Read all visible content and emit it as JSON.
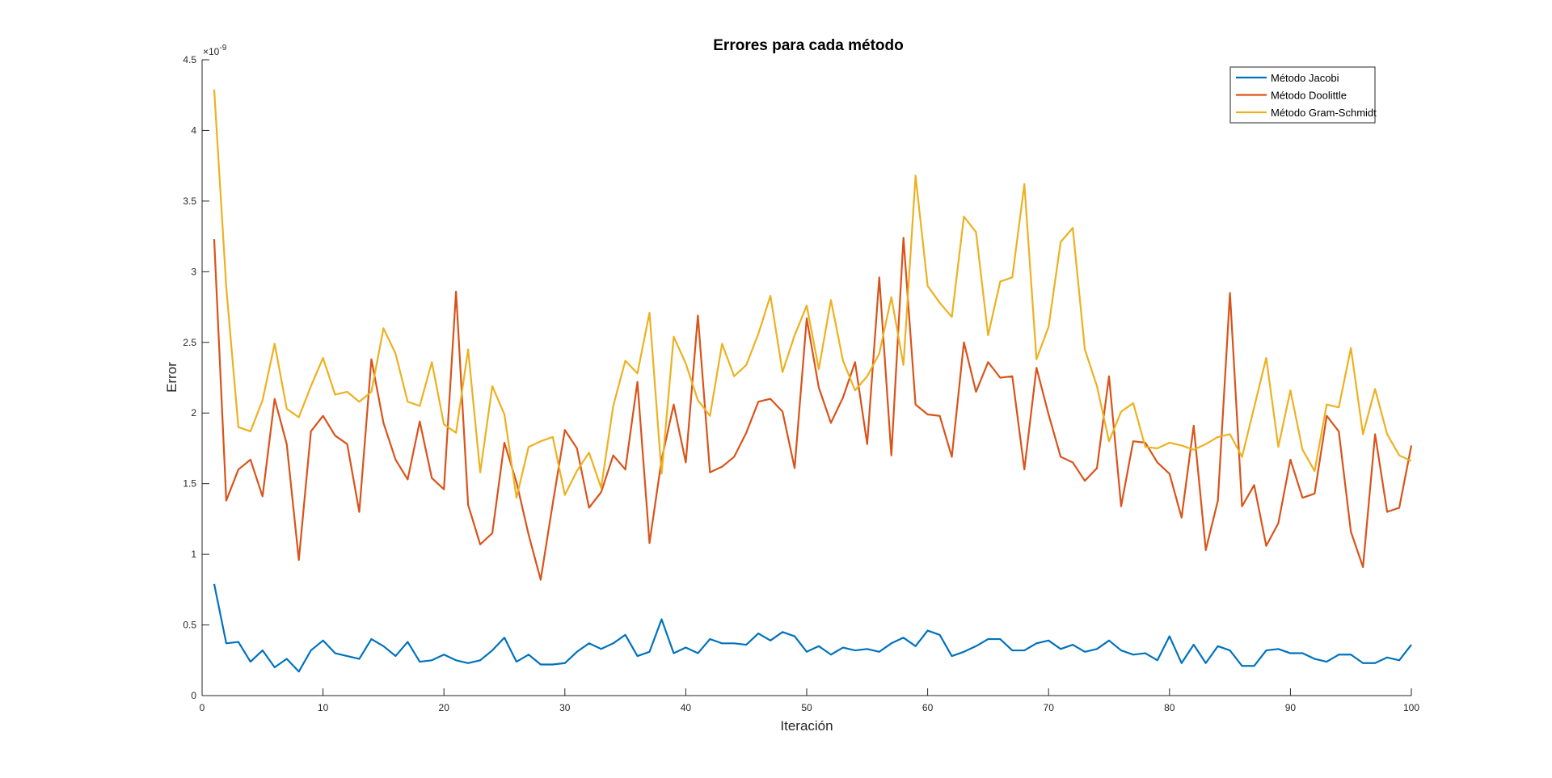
{
  "chart_data": {
    "type": "line",
    "title": "Errores para cada método",
    "xlabel": "Iteración",
    "ylabel": "Error",
    "y_exponent_label": "×10",
    "y_exponent_power": "-9",
    "xlim": [
      0,
      100
    ],
    "ylim": [
      0,
      4.5
    ],
    "xticks": [
      0,
      10,
      20,
      30,
      40,
      50,
      60,
      70,
      80,
      90,
      100
    ],
    "yticks": [
      0,
      0.5,
      1,
      1.5,
      2,
      2.5,
      3,
      3.5,
      4,
      4.5
    ],
    "ytick_labels": [
      "0",
      "0.5",
      "1",
      "1.5",
      "2",
      "2.5",
      "3",
      "3.5",
      "4",
      "4.5"
    ],
    "grid": false,
    "legend_position": "top-right",
    "series": [
      {
        "name": "Método Jacobi",
        "color": "#0072BD",
        "values": [
          0.79,
          0.37,
          0.38,
          0.24,
          0.32,
          0.2,
          0.26,
          0.17,
          0.32,
          0.39,
          0.3,
          0.28,
          0.26,
          0.4,
          0.35,
          0.28,
          0.38,
          0.24,
          0.25,
          0.29,
          0.25,
          0.23,
          0.25,
          0.32,
          0.41,
          0.24,
          0.29,
          0.22,
          0.22,
          0.23,
          0.31,
          0.37,
          0.33,
          0.37,
          0.43,
          0.28,
          0.31,
          0.54,
          0.3,
          0.34,
          0.3,
          0.4,
          0.37,
          0.37,
          0.36,
          0.44,
          0.39,
          0.45,
          0.42,
          0.31,
          0.35,
          0.29,
          0.34,
          0.32,
          0.33,
          0.31,
          0.37,
          0.41,
          0.35,
          0.46,
          0.43,
          0.28,
          0.31,
          0.35,
          0.4,
          0.4,
          0.32,
          0.32,
          0.37,
          0.39,
          0.33,
          0.36,
          0.31,
          0.33,
          0.39,
          0.32,
          0.29,
          0.3,
          0.25,
          0.42,
          0.23,
          0.36,
          0.23,
          0.35,
          0.32,
          0.21,
          0.21,
          0.32,
          0.33,
          0.3,
          0.3,
          0.26,
          0.24,
          0.29,
          0.29,
          0.23,
          0.23,
          0.27,
          0.25,
          0.36
        ]
      },
      {
        "name": "Método Doolittle",
        "color": "#D95319",
        "values": [
          3.23,
          1.38,
          1.6,
          1.67,
          1.41,
          2.1,
          1.78,
          0.96,
          1.87,
          1.98,
          1.84,
          1.78,
          1.3,
          2.38,
          1.93,
          1.67,
          1.53,
          1.94,
          1.54,
          1.46,
          2.86,
          1.35,
          1.07,
          1.15,
          1.79,
          1.51,
          1.14,
          0.82,
          1.36,
          1.88,
          1.75,
          1.33,
          1.44,
          1.7,
          1.6,
          2.22,
          1.08,
          1.67,
          2.06,
          1.65,
          2.69,
          1.58,
          1.62,
          1.69,
          1.86,
          2.08,
          2.1,
          2.01,
          1.61,
          2.67,
          2.18,
          1.93,
          2.11,
          2.36,
          1.78,
          2.96,
          1.7,
          3.24,
          2.06,
          1.99,
          1.98,
          1.69,
          2.5,
          2.15,
          2.36,
          2.25,
          2.26,
          1.6,
          2.32,
          1.99,
          1.69,
          1.65,
          1.52,
          1.61,
          2.26,
          1.34,
          1.8,
          1.79,
          1.65,
          1.57,
          1.26,
          1.91,
          1.03,
          1.38,
          2.85,
          1.34,
          1.49,
          1.06,
          1.22,
          1.67,
          1.4,
          1.43,
          1.98,
          1.87,
          1.16,
          0.91,
          1.85,
          1.3,
          1.33,
          1.77
        ]
      },
      {
        "name": "Método Gram-Schmidt",
        "color": "#EDB120",
        "values": [
          4.29,
          2.89,
          1.9,
          1.87,
          2.09,
          2.49,
          2.03,
          1.97,
          2.19,
          2.39,
          2.13,
          2.15,
          2.08,
          2.15,
          2.6,
          2.42,
          2.08,
          2.05,
          2.36,
          1.92,
          1.86,
          2.45,
          1.58,
          2.19,
          1.99,
          1.4,
          1.76,
          1.8,
          1.83,
          1.42,
          1.59,
          1.72,
          1.47,
          2.05,
          2.37,
          2.28,
          2.71,
          1.57,
          2.54,
          2.35,
          2.09,
          1.98,
          2.49,
          2.26,
          2.34,
          2.56,
          2.83,
          2.29,
          2.55,
          2.76,
          2.31,
          2.8,
          2.37,
          2.16,
          2.26,
          2.42,
          2.82,
          2.34,
          3.68,
          2.9,
          2.78,
          2.68,
          3.39,
          3.28,
          2.55,
          2.93,
          2.96,
          3.62,
          2.38,
          2.61,
          3.21,
          3.31,
          2.45,
          2.19,
          1.8,
          2.01,
          2.07,
          1.76,
          1.75,
          1.79,
          1.77,
          1.74,
          1.78,
          1.83,
          1.85,
          1.69,
          2.04,
          2.39,
          1.76,
          2.16,
          1.74,
          1.59,
          2.06,
          2.04,
          2.46,
          1.85,
          2.17,
          1.85,
          1.7,
          1.66
        ]
      }
    ]
  }
}
